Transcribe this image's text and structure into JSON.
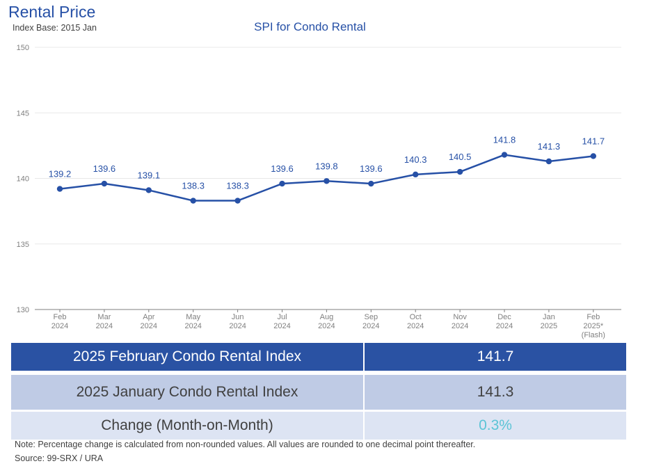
{
  "header": {
    "title": "Rental Price",
    "index_base": "Index Base: 2015 Jan"
  },
  "chart_data": {
    "type": "line",
    "title": "SPI for Condo Rental",
    "categories": [
      [
        "Feb",
        "2024"
      ],
      [
        "Mar",
        "2024"
      ],
      [
        "Apr",
        "2024"
      ],
      [
        "May",
        "2024"
      ],
      [
        "Jun",
        "2024"
      ],
      [
        "Jul",
        "2024"
      ],
      [
        "Aug",
        "2024"
      ],
      [
        "Sep",
        "2024"
      ],
      [
        "Oct",
        "2024"
      ],
      [
        "Nov",
        "2024"
      ],
      [
        "Dec",
        "2024"
      ],
      [
        "Jan",
        "2025"
      ],
      [
        "Feb",
        "2025*",
        "(Flash)"
      ]
    ],
    "series": [
      {
        "values": [
          139.2,
          139.6,
          139.1,
          138.3,
          138.3,
          139.6,
          139.8,
          139.6,
          140.3,
          140.5,
          141.8,
          141.3,
          141.7
        ]
      }
    ],
    "data_labels": [
      "139.2",
      "139.6",
      "139.1",
      "138.3",
      "138.3",
      "139.6",
      "139.8",
      "139.6",
      "140.3",
      "140.5",
      "141.8",
      "141.3",
      "141.7"
    ],
    "ylim": [
      130,
      150
    ],
    "yticks": [
      130,
      135,
      140,
      145,
      150
    ],
    "grid": true,
    "colors": {
      "line": "#2650a6",
      "grid": "#e8e8e8",
      "axis": "#7f7f7f",
      "labels": "#2650a6",
      "ticks": "#7f7f7f"
    }
  },
  "table": {
    "rows": [
      {
        "label": "2025 February Condo Rental Index",
        "value": "141.7"
      },
      {
        "label": "2025 January Condo Rental Index",
        "value": "141.3"
      },
      {
        "label": "Change (Month-on-Month)",
        "value": "0.3%"
      }
    ]
  },
  "footer": {
    "note": "Note: Percentage change is calculated from non-rounded values.  All values are rounded to one decimal point thereafter.",
    "source": "Source: 99-SRX / URA"
  }
}
